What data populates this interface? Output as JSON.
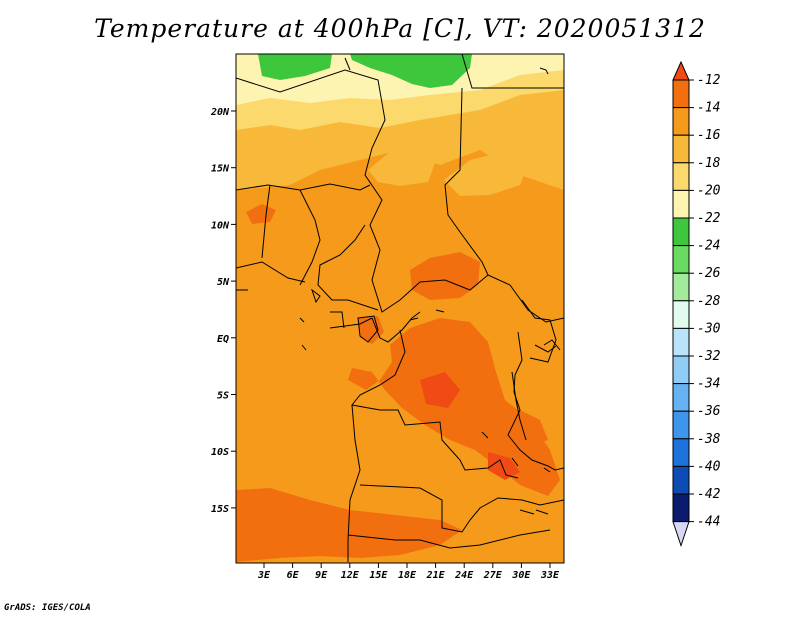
{
  "title": "Temperature at 400hPa [C], VT: 2020051312",
  "footer": "GrADS: IGES/COLA",
  "map": {
    "region": "Central Africa",
    "x_ticks": [
      "3E",
      "6E",
      "9E",
      "12E",
      "15E",
      "18E",
      "21E",
      "24E",
      "27E",
      "30E",
      "33E"
    ],
    "y_ticks": [
      "20N",
      "15N",
      "10N",
      "5N",
      "EQ",
      "5S",
      "10S",
      "15S"
    ],
    "dominant_field_value": "-14 to -16"
  },
  "colorbar": {
    "labels": [
      "-12",
      "-14",
      "-16",
      "-18",
      "-20",
      "-22",
      "-24",
      "-26",
      "-28",
      "-30",
      "-32",
      "-34",
      "-36",
      "-38",
      "-40",
      "-42",
      "-44"
    ],
    "colors": [
      "#f04a15",
      "#f26f10",
      "#f59a1a",
      "#f8b93a",
      "#fbd96d",
      "#fdf4b1",
      "#3ec63c",
      "#6adb62",
      "#a1eb9a",
      "#e1fbee",
      "#b9e3fb",
      "#8fcdf7",
      "#66b3f3",
      "#3d96ec",
      "#1d72db",
      "#0e4cb5",
      "#0b1b6d",
      "#d7d7f6"
    ]
  }
}
